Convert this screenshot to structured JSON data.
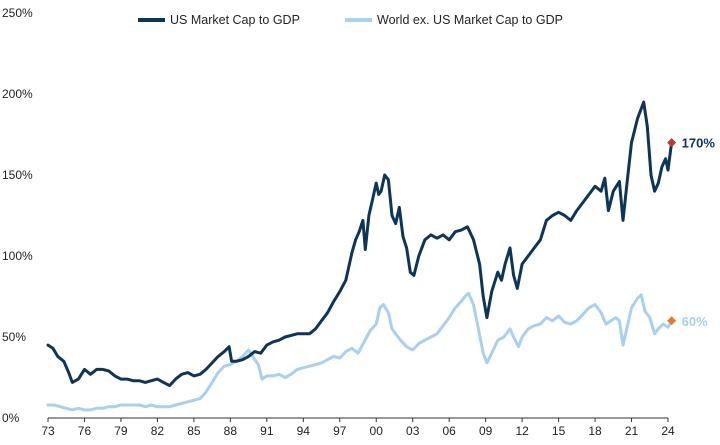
{
  "chart_data": {
    "type": "line",
    "title": "",
    "xlabel": "",
    "ylabel": "",
    "x_range": [
      1973,
      2024
    ],
    "ylim": [
      0,
      250
    ],
    "y_ticks": [
      0,
      50,
      100,
      150,
      200,
      250
    ],
    "y_tick_labels": [
      "0%",
      "50%",
      "100%",
      "150%",
      "200%",
      "250%"
    ],
    "x_ticks": [
      1973,
      1976,
      1979,
      1982,
      1985,
      1988,
      1991,
      1994,
      1997,
      2000,
      2003,
      2006,
      2009,
      2012,
      2015,
      2018,
      2021,
      2024
    ],
    "x_tick_labels": [
      "73",
      "76",
      "79",
      "82",
      "85",
      "88",
      "91",
      "94",
      "97",
      "00",
      "03",
      "06",
      "09",
      "12",
      "15",
      "18",
      "21",
      "24"
    ],
    "grid": false,
    "legend_position": "top-center",
    "series": [
      {
        "name": "US Market Cap to GDP",
        "color": "#0d3459",
        "marker_color": "#c0392b",
        "end_label": "170%",
        "end_value": 170,
        "points": [
          [
            1973.0,
            45
          ],
          [
            1973.4,
            43
          ],
          [
            1973.8,
            38
          ],
          [
            1974.3,
            35
          ],
          [
            1974.7,
            28
          ],
          [
            1975.0,
            22
          ],
          [
            1975.5,
            24
          ],
          [
            1976.0,
            30
          ],
          [
            1976.5,
            27
          ],
          [
            1977.0,
            30
          ],
          [
            1977.5,
            30
          ],
          [
            1978.0,
            29
          ],
          [
            1978.5,
            26
          ],
          [
            1979.0,
            24
          ],
          [
            1979.5,
            24
          ],
          [
            1980.0,
            23
          ],
          [
            1980.5,
            23
          ],
          [
            1981.0,
            22
          ],
          [
            1981.5,
            23
          ],
          [
            1982.0,
            24
          ],
          [
            1982.5,
            22
          ],
          [
            1983.0,
            20
          ],
          [
            1983.5,
            24
          ],
          [
            1984.0,
            27
          ],
          [
            1984.5,
            28
          ],
          [
            1985.0,
            26
          ],
          [
            1985.5,
            27
          ],
          [
            1986.0,
            30
          ],
          [
            1986.5,
            34
          ],
          [
            1987.0,
            38
          ],
          [
            1987.5,
            41
          ],
          [
            1987.9,
            44
          ],
          [
            1988.1,
            35
          ],
          [
            1988.5,
            35
          ],
          [
            1989.0,
            36
          ],
          [
            1989.5,
            38
          ],
          [
            1990.0,
            41
          ],
          [
            1990.5,
            40
          ],
          [
            1991.0,
            45
          ],
          [
            1991.5,
            47
          ],
          [
            1992.0,
            48
          ],
          [
            1992.5,
            50
          ],
          [
            1993.0,
            51
          ],
          [
            1993.5,
            52
          ],
          [
            1994.0,
            52
          ],
          [
            1994.5,
            52
          ],
          [
            1995.0,
            55
          ],
          [
            1995.5,
            60
          ],
          [
            1996.0,
            65
          ],
          [
            1996.5,
            72
          ],
          [
            1997.0,
            78
          ],
          [
            1997.5,
            85
          ],
          [
            1998.0,
            102
          ],
          [
            1998.3,
            110
          ],
          [
            1998.6,
            115
          ],
          [
            1998.9,
            122
          ],
          [
            1999.1,
            104
          ],
          [
            1999.4,
            125
          ],
          [
            1999.7,
            135
          ],
          [
            2000.0,
            145
          ],
          [
            2000.2,
            138
          ],
          [
            2000.4,
            140
          ],
          [
            2000.7,
            150
          ],
          [
            2001.0,
            147
          ],
          [
            2001.3,
            125
          ],
          [
            2001.6,
            120
          ],
          [
            2001.9,
            130
          ],
          [
            2002.2,
            112
          ],
          [
            2002.5,
            105
          ],
          [
            2002.8,
            90
          ],
          [
            2003.1,
            88
          ],
          [
            2003.5,
            100
          ],
          [
            2004.0,
            110
          ],
          [
            2004.5,
            113
          ],
          [
            2005.0,
            111
          ],
          [
            2005.5,
            113
          ],
          [
            2006.0,
            110
          ],
          [
            2006.5,
            115
          ],
          [
            2007.0,
            116
          ],
          [
            2007.5,
            118
          ],
          [
            2008.0,
            110
          ],
          [
            2008.5,
            95
          ],
          [
            2008.8,
            75
          ],
          [
            2009.1,
            62
          ],
          [
            2009.5,
            78
          ],
          [
            2010.0,
            90
          ],
          [
            2010.3,
            85
          ],
          [
            2010.6,
            95
          ],
          [
            2011.0,
            105
          ],
          [
            2011.3,
            88
          ],
          [
            2011.6,
            80
          ],
          [
            2012.0,
            95
          ],
          [
            2012.5,
            100
          ],
          [
            2013.0,
            105
          ],
          [
            2013.5,
            110
          ],
          [
            2014.0,
            122
          ],
          [
            2014.5,
            125
          ],
          [
            2015.0,
            127
          ],
          [
            2015.5,
            125
          ],
          [
            2016.0,
            122
          ],
          [
            2016.5,
            128
          ],
          [
            2017.0,
            133
          ],
          [
            2017.5,
            138
          ],
          [
            2018.0,
            143
          ],
          [
            2018.5,
            140
          ],
          [
            2018.8,
            148
          ],
          [
            2019.1,
            128
          ],
          [
            2019.5,
            140
          ],
          [
            2020.0,
            146
          ],
          [
            2020.3,
            122
          ],
          [
            2020.7,
            150
          ],
          [
            2021.0,
            170
          ],
          [
            2021.5,
            185
          ],
          [
            2022.0,
            195
          ],
          [
            2022.3,
            180
          ],
          [
            2022.6,
            150
          ],
          [
            2022.9,
            140
          ],
          [
            2023.2,
            145
          ],
          [
            2023.5,
            155
          ],
          [
            2023.8,
            160
          ],
          [
            2024.0,
            153
          ],
          [
            2024.3,
            170
          ]
        ]
      },
      {
        "name": "World ex. US Market Cap to GDP",
        "color": "#a8d0ef",
        "marker_color": "#e07b2a",
        "end_label": "60%",
        "end_value": 60,
        "points": [
          [
            1973.0,
            8
          ],
          [
            1973.5,
            8
          ],
          [
            1974.0,
            7
          ],
          [
            1974.5,
            6
          ],
          [
            1975.0,
            5
          ],
          [
            1975.5,
            6
          ],
          [
            1976.0,
            5
          ],
          [
            1976.5,
            5
          ],
          [
            1977.0,
            6
          ],
          [
            1977.5,
            6
          ],
          [
            1978.0,
            7
          ],
          [
            1978.5,
            7
          ],
          [
            1979.0,
            8
          ],
          [
            1979.5,
            8
          ],
          [
            1980.0,
            8
          ],
          [
            1980.5,
            8
          ],
          [
            1981.0,
            7
          ],
          [
            1981.5,
            8
          ],
          [
            1982.0,
            7
          ],
          [
            1982.5,
            7
          ],
          [
            1983.0,
            7
          ],
          [
            1983.5,
            8
          ],
          [
            1984.0,
            9
          ],
          [
            1984.5,
            10
          ],
          [
            1985.0,
            11
          ],
          [
            1985.5,
            12
          ],
          [
            1986.0,
            16
          ],
          [
            1986.5,
            22
          ],
          [
            1987.0,
            28
          ],
          [
            1987.5,
            32
          ],
          [
            1988.0,
            33
          ],
          [
            1988.5,
            35
          ],
          [
            1989.0,
            38
          ],
          [
            1989.5,
            42
          ],
          [
            1990.0,
            36
          ],
          [
            1990.3,
            33
          ],
          [
            1990.6,
            24
          ],
          [
            1991.0,
            26
          ],
          [
            1991.5,
            26
          ],
          [
            1992.0,
            27
          ],
          [
            1992.5,
            25
          ],
          [
            1993.0,
            27
          ],
          [
            1993.5,
            30
          ],
          [
            1994.0,
            31
          ],
          [
            1994.5,
            32
          ],
          [
            1995.0,
            33
          ],
          [
            1995.5,
            34
          ],
          [
            1996.0,
            36
          ],
          [
            1996.5,
            38
          ],
          [
            1997.0,
            37
          ],
          [
            1997.5,
            41
          ],
          [
            1998.0,
            43
          ],
          [
            1998.5,
            40
          ],
          [
            1999.0,
            47
          ],
          [
            1999.5,
            54
          ],
          [
            2000.0,
            58
          ],
          [
            2000.3,
            68
          ],
          [
            2000.6,
            70
          ],
          [
            2001.0,
            65
          ],
          [
            2001.3,
            55
          ],
          [
            2001.6,
            52
          ],
          [
            2002.0,
            48
          ],
          [
            2002.5,
            44
          ],
          [
            2003.0,
            42
          ],
          [
            2003.5,
            46
          ],
          [
            2004.0,
            48
          ],
          [
            2004.5,
            50
          ],
          [
            2005.0,
            52
          ],
          [
            2005.5,
            57
          ],
          [
            2006.0,
            62
          ],
          [
            2006.5,
            68
          ],
          [
            2007.0,
            72
          ],
          [
            2007.3,
            75
          ],
          [
            2007.6,
            77
          ],
          [
            2008.0,
            70
          ],
          [
            2008.4,
            55
          ],
          [
            2008.8,
            40
          ],
          [
            2009.1,
            34
          ],
          [
            2009.5,
            40
          ],
          [
            2010.0,
            48
          ],
          [
            2010.5,
            50
          ],
          [
            2011.0,
            55
          ],
          [
            2011.3,
            50
          ],
          [
            2011.7,
            44
          ],
          [
            2012.0,
            50
          ],
          [
            2012.5,
            55
          ],
          [
            2013.0,
            57
          ],
          [
            2013.5,
            58
          ],
          [
            2014.0,
            62
          ],
          [
            2014.5,
            60
          ],
          [
            2015.0,
            63
          ],
          [
            2015.5,
            59
          ],
          [
            2016.0,
            58
          ],
          [
            2016.5,
            60
          ],
          [
            2017.0,
            64
          ],
          [
            2017.5,
            68
          ],
          [
            2018.0,
            70
          ],
          [
            2018.5,
            65
          ],
          [
            2018.9,
            58
          ],
          [
            2019.3,
            60
          ],
          [
            2019.7,
            62
          ],
          [
            2020.0,
            60
          ],
          [
            2020.3,
            45
          ],
          [
            2020.7,
            58
          ],
          [
            2021.0,
            68
          ],
          [
            2021.5,
            74
          ],
          [
            2021.8,
            76
          ],
          [
            2022.1,
            66
          ],
          [
            2022.5,
            62
          ],
          [
            2022.9,
            52
          ],
          [
            2023.2,
            55
          ],
          [
            2023.6,
            58
          ],
          [
            2024.0,
            56
          ],
          [
            2024.3,
            60
          ]
        ]
      }
    ]
  }
}
